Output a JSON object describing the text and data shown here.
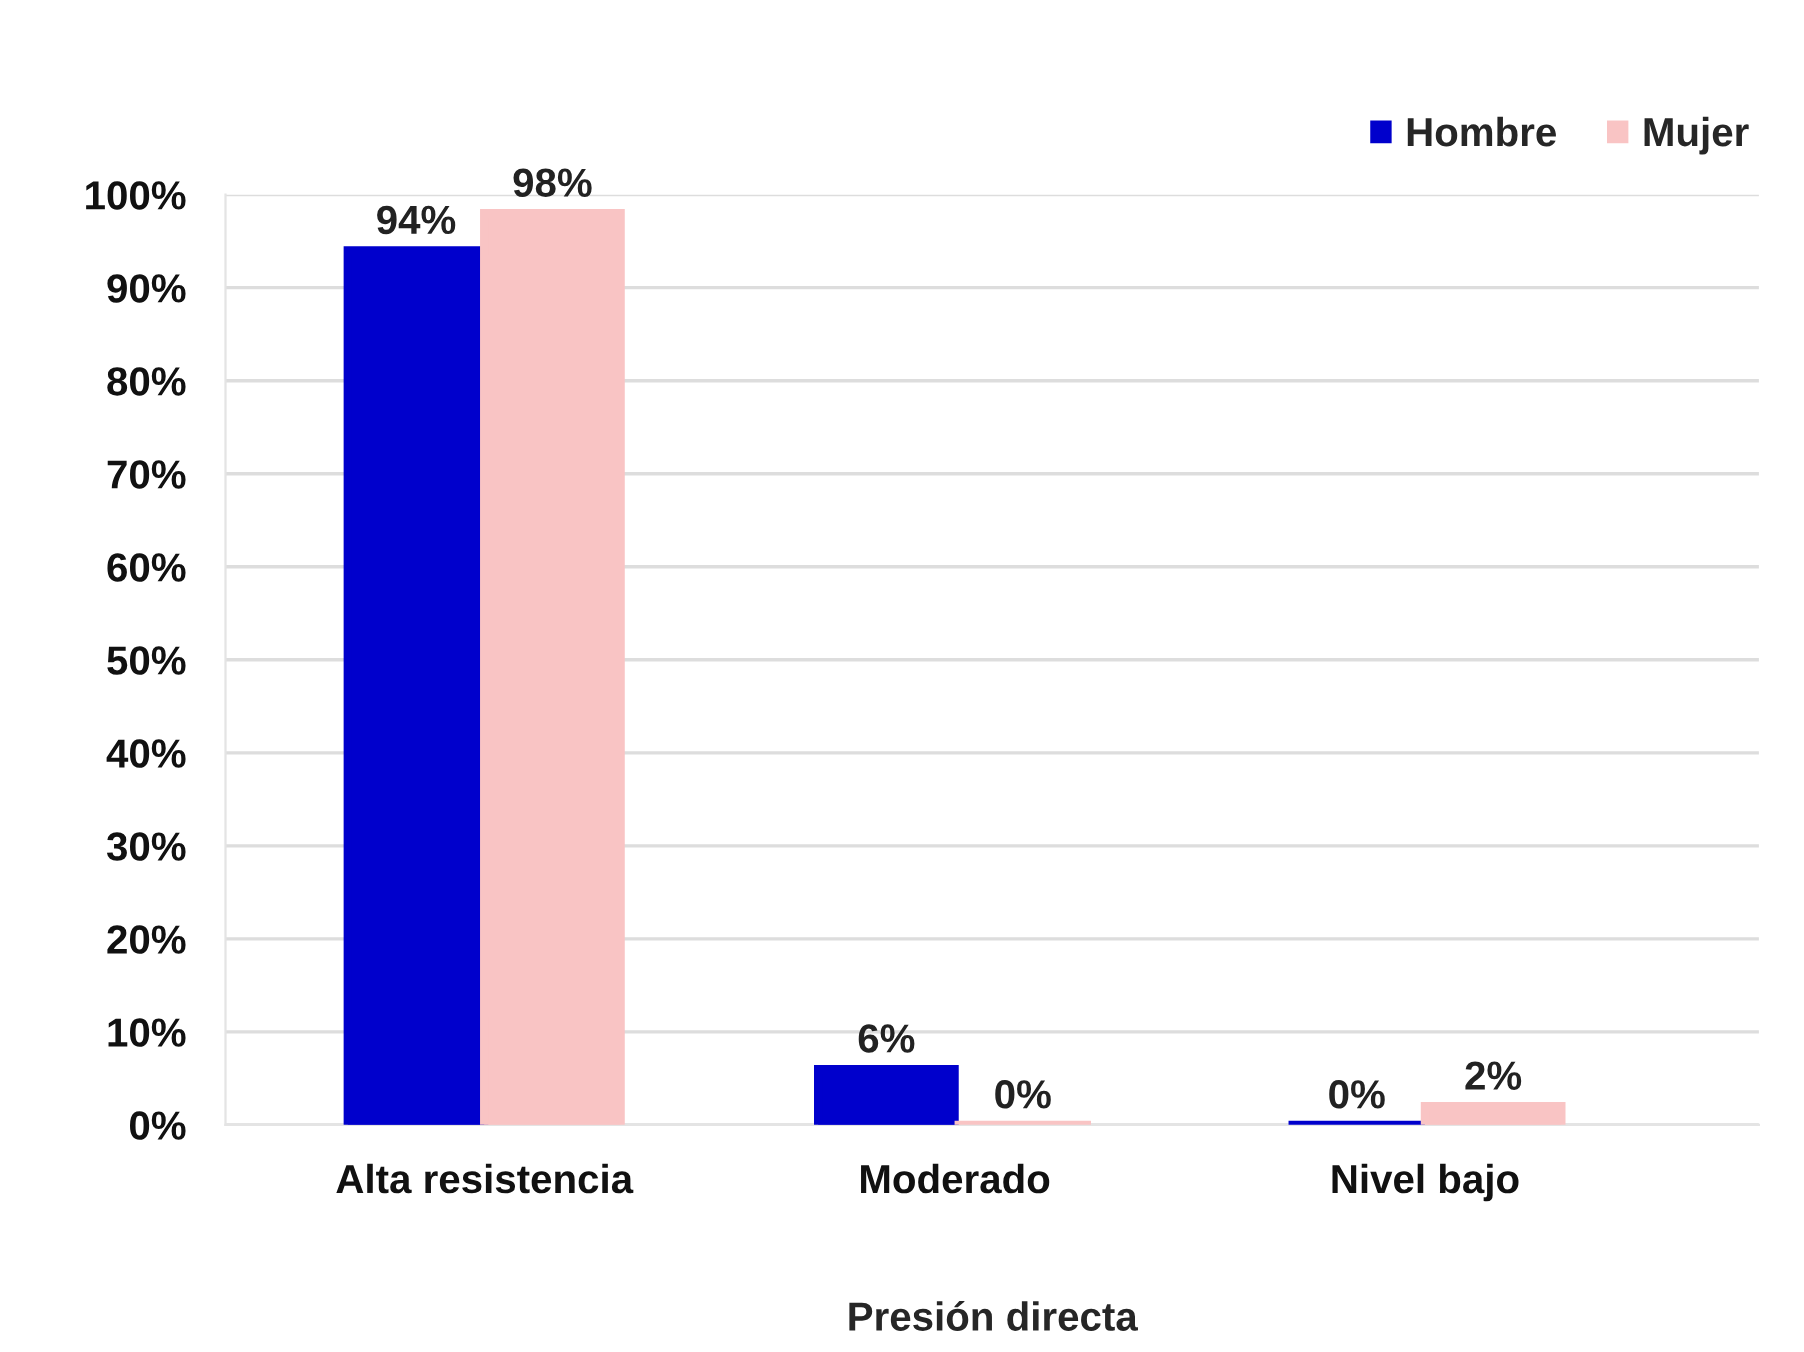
{
  "chart_data": {
    "type": "bar",
    "xlabel": "Presión directa",
    "categories": [
      "Alta resistencia",
      "Moderado",
      "Nivel bajo"
    ],
    "series": [
      {
        "name": "Hombre",
        "color": "#0000cc",
        "values": [
          94,
          6,
          0
        ],
        "value_labels": [
          "94%",
          "6%",
          "0%"
        ]
      },
      {
        "name": "Mujer",
        "color": "#f9c4c4",
        "values": [
          98,
          0,
          2
        ],
        "value_labels": [
          "98%",
          "0%",
          "2%"
        ]
      }
    ],
    "ylim": [
      0,
      100
    ],
    "yticks": [
      {
        "value": 0,
        "label": "0%"
      },
      {
        "value": 10,
        "label": "10%"
      },
      {
        "value": 20,
        "label": "20%"
      },
      {
        "value": 30,
        "label": "30%"
      },
      {
        "value": 40,
        "label": "40%"
      },
      {
        "value": 50,
        "label": "50%"
      },
      {
        "value": 60,
        "label": "60%"
      },
      {
        "value": 70,
        "label": "70%"
      },
      {
        "value": 80,
        "label": "80%"
      },
      {
        "value": 90,
        "label": "90%"
      },
      {
        "value": 100,
        "label": "100%"
      }
    ],
    "grid": "y",
    "legend": "top right"
  }
}
